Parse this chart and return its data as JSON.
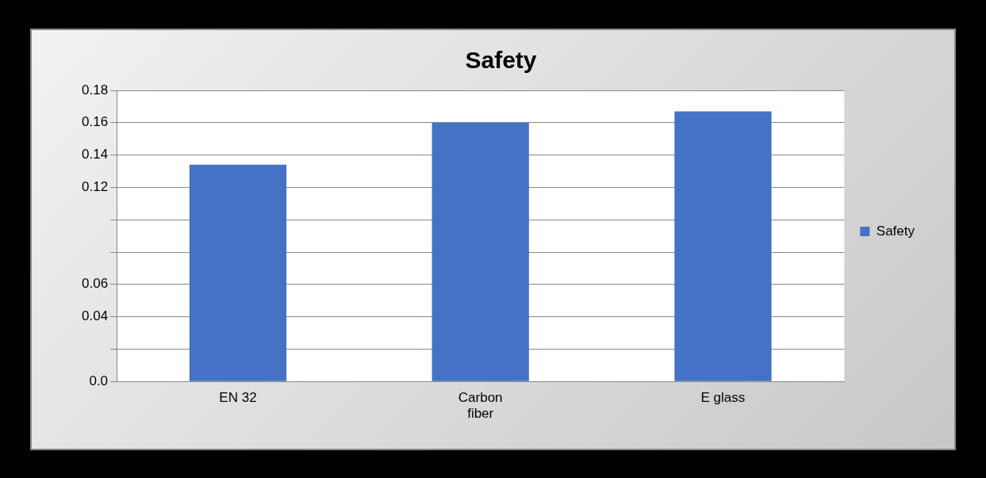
{
  "chart_data": {
    "type": "bar",
    "title": "Safety",
    "categories": [
      "EN 32",
      "Carbon fiber",
      "E glass"
    ],
    "series": [
      {
        "name": "Safety",
        "color": "#4472c4",
        "values": [
          0.134,
          0.16,
          0.167
        ]
      }
    ],
    "ylim": [
      0,
      0.18
    ],
    "yticks": [
      {
        "value": 0,
        "label": "0.0"
      },
      {
        "value": 0.02,
        "label": null
      },
      {
        "value": 0.04,
        "label": "0.04"
      },
      {
        "value": 0.06,
        "label": "0.06"
      },
      {
        "value": 0.08,
        "label": null
      },
      {
        "value": 0.1,
        "label": null
      },
      {
        "value": 0.12,
        "label": "0.12"
      },
      {
        "value": 0.14,
        "label": "0.14"
      },
      {
        "value": 0.16,
        "label": "0.16"
      },
      {
        "value": 0.18,
        "label": "0.18"
      }
    ],
    "grid": "y",
    "legend": "right"
  }
}
